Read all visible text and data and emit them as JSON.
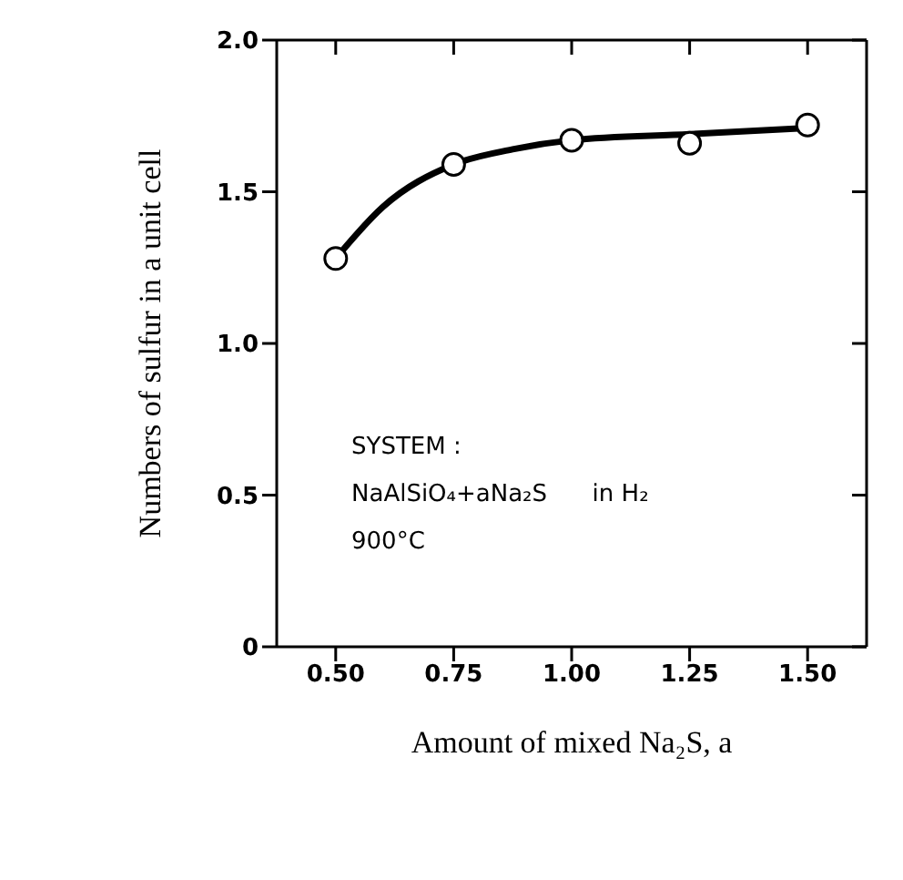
{
  "chart_data": {
    "type": "scatter",
    "xlabel": "Amount of mixed Na₂S, a",
    "ylabel": "Numbers of sulfur in a unit cell",
    "annotations": [
      "SYSTEM :",
      "NaAlSiO₄+aNa₂S      in H₂",
      "900°C"
    ],
    "xlim": [
      0.375,
      1.625
    ],
    "xticks": [
      {
        "value": 0.5,
        "label": "0.50"
      },
      {
        "value": 0.75,
        "label": "0.75"
      },
      {
        "value": 1,
        "label": "1.00"
      },
      {
        "value": 1.25,
        "label": "1.25"
      },
      {
        "value": 1.5,
        "label": "1.50"
      }
    ],
    "ylim": [
      0,
      2
    ],
    "yticks": [
      0,
      0.5,
      {
        "value": 1,
        "label": "1.0"
      },
      1.5,
      {
        "value": 2,
        "label": "2.0"
      }
    ],
    "grid": false,
    "legend": false,
    "series": [
      {
        "marker": "circle",
        "color": "#000000",
        "x": [
          0.5,
          0.75,
          1,
          1.25,
          1.5
        ],
        "values": [
          1.28,
          1.59,
          1.67,
          1.66,
          1.72
        ]
      },
      {
        "type": "line",
        "marker": "none",
        "line_style": "solid",
        "color": "#000000",
        "x": [
          0.5,
          0.6,
          0.75,
          0.875,
          1,
          1.25,
          1.5
        ],
        "values": [
          1.28,
          1.45,
          1.59,
          1.64,
          1.67,
          1.69,
          1.71
        ]
      }
    ]
  }
}
